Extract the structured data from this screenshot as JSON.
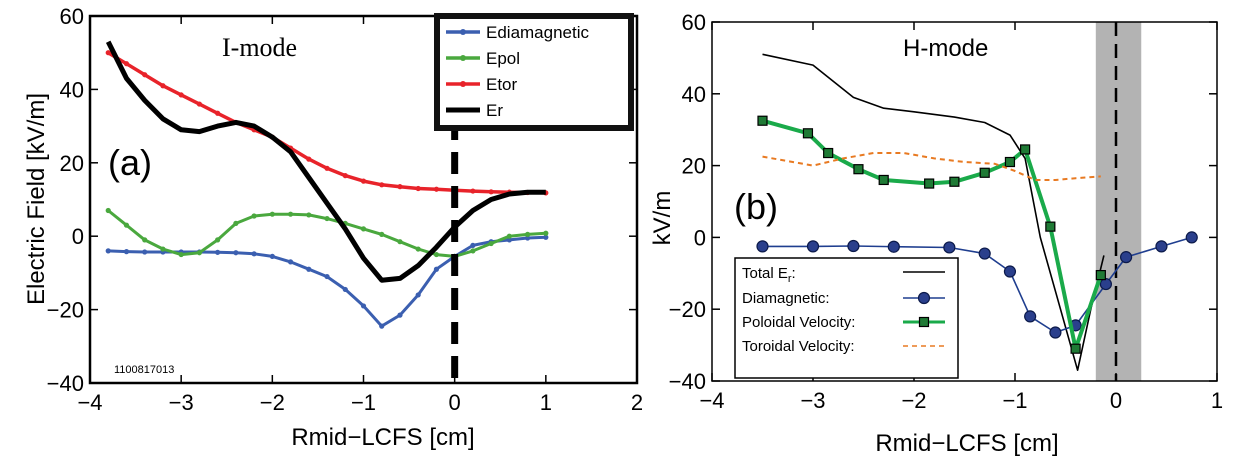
{
  "chart_data": [
    {
      "type": "line",
      "panel_label": "(a)",
      "mode_label": "I-mode",
      "xlabel": "Rmid−LCFS [cm]",
      "ylabel": "Electric Field [kV/m]",
      "xlim": [
        -4,
        2
      ],
      "ylim": [
        -40,
        60
      ],
      "xticks": [
        -4,
        -3,
        -2,
        -1,
        0,
        1,
        2
      ],
      "yticks": [
        -40,
        -20,
        0,
        20,
        40,
        60
      ],
      "shot_label": "1100817013",
      "legend_position": "top-right",
      "vline_x": 0,
      "series": [
        {
          "name": "Ediamagnetic",
          "color": "#3b5fb0",
          "marker": "dot",
          "x": [
            -3.8,
            -3.6,
            -3.4,
            -3.2,
            -3.0,
            -2.8,
            -2.6,
            -2.4,
            -2.2,
            -2.0,
            -1.8,
            -1.6,
            -1.4,
            -1.2,
            -1.0,
            -0.8,
            -0.6,
            -0.4,
            -0.2,
            0.0,
            0.2,
            0.4,
            0.6,
            0.8,
            1.0
          ],
          "y": [
            -4,
            -4.2,
            -4.3,
            -4.3,
            -4.3,
            -4.3,
            -4.4,
            -4.5,
            -4.8,
            -5.5,
            -7,
            -9,
            -11,
            -14.5,
            -19,
            -24.5,
            -21.5,
            -16,
            -9,
            -5.5,
            -2.5,
            -1.5,
            -1,
            -0.5,
            -0.3
          ]
        },
        {
          "name": "Epol",
          "color": "#4aa83e",
          "marker": "dot",
          "x": [
            -3.8,
            -3.6,
            -3.4,
            -3.2,
            -3.0,
            -2.8,
            -2.6,
            -2.4,
            -2.2,
            -2.0,
            -1.8,
            -1.6,
            -1.4,
            -1.2,
            -1.0,
            -0.8,
            -0.6,
            -0.4,
            -0.2,
            0.0,
            0.2,
            0.4,
            0.6,
            0.8,
            1.0
          ],
          "y": [
            7,
            3,
            -1,
            -3.5,
            -5,
            -4.5,
            -1,
            3.5,
            5.5,
            6,
            6,
            5.8,
            4.8,
            3.5,
            2,
            0.5,
            -1.5,
            -3.5,
            -5,
            -5.5,
            -4,
            -2,
            0,
            0.5,
            0.8
          ]
        },
        {
          "name": "Etor",
          "color": "#e8232a",
          "marker": "dot",
          "x": [
            -3.8,
            -3.6,
            -3.4,
            -3.2,
            -3.0,
            -2.8,
            -2.6,
            -2.4,
            -2.2,
            -2.0,
            -1.8,
            -1.6,
            -1.4,
            -1.2,
            -1.0,
            -0.8,
            -0.6,
            -0.4,
            -0.2,
            0.0,
            0.2,
            0.4,
            0.6,
            0.8,
            1.0
          ],
          "y": [
            50,
            47,
            44,
            41,
            38.5,
            36,
            33.5,
            31,
            29,
            27,
            24,
            21,
            18.5,
            16.5,
            15,
            14,
            13.5,
            13,
            12.8,
            12.5,
            12.3,
            12.1,
            12,
            11.9,
            11.8
          ]
        },
        {
          "name": "Er",
          "color": "#000000",
          "marker": "none",
          "x": [
            -3.8,
            -3.6,
            -3.4,
            -3.2,
            -3.0,
            -2.8,
            -2.6,
            -2.4,
            -2.2,
            -2.0,
            -1.8,
            -1.6,
            -1.4,
            -1.2,
            -1.0,
            -0.8,
            -0.6,
            -0.4,
            -0.2,
            0.0,
            0.2,
            0.4,
            0.6,
            0.8,
            1.0
          ],
          "y": [
            53,
            43,
            37,
            32,
            29,
            28.5,
            30,
            31,
            30,
            27,
            23,
            16,
            9,
            2,
            -6,
            -12,
            -11.5,
            -8,
            -3,
            2.5,
            7,
            10,
            11.5,
            12,
            12
          ]
        }
      ]
    },
    {
      "type": "line",
      "panel_label": "(b)",
      "mode_label": "H-mode",
      "xlabel": "Rmid−LCFS [cm]",
      "ylabel": "kV/m",
      "xlim": [
        -4,
        1
      ],
      "ylim": [
        -40,
        60
      ],
      "xticks": [
        -4,
        -3,
        -2,
        -1,
        0,
        1
      ],
      "yticks": [
        -40,
        -20,
        0,
        20,
        40,
        60
      ],
      "legend_position": "bottom-left",
      "shaded_band": [
        -0.2,
        0.25
      ],
      "vline_x": 0,
      "legend_title_prefix": "Total E",
      "legend_title_sub": "r",
      "legend_title_suffix": ":",
      "series": [
        {
          "name": "Total Er",
          "color": "#000000",
          "marker": "none",
          "dash": "solid",
          "x": [
            -3.5,
            -3.0,
            -2.6,
            -2.3,
            -2.0,
            -1.6,
            -1.3,
            -1.05,
            -0.9,
            -0.75,
            -0.55,
            -0.38,
            -0.25,
            -0.12
          ],
          "y": [
            51,
            48,
            39,
            36,
            35,
            33.5,
            32,
            28.5,
            22,
            0,
            -20,
            -37,
            -20,
            -5
          ]
        },
        {
          "name": "Diamagnetic:",
          "color": "#1f3e8f",
          "marker": "circle",
          "dash": "solid",
          "x": [
            -3.5,
            -3.0,
            -2.6,
            -2.2,
            -1.65,
            -1.3,
            -1.05,
            -0.85,
            -0.6,
            -0.4,
            -0.1,
            0.1,
            0.45,
            0.75
          ],
          "y": [
            -2.5,
            -2.5,
            -2.4,
            -2.6,
            -2.8,
            -4.5,
            -9.5,
            -22,
            -26.5,
            -24.5,
            -13,
            -5.5,
            -2.5,
            0
          ]
        },
        {
          "name": "Poloidal Velocity:",
          "color": "#1aaa4a",
          "marker": "square",
          "dash": "solid",
          "x": [
            -3.5,
            -3.05,
            -2.85,
            -2.55,
            -2.3,
            -1.85,
            -1.6,
            -1.3,
            -1.05,
            -0.9,
            -0.65,
            -0.4,
            -0.15
          ],
          "y": [
            32.5,
            29,
            23.5,
            19,
            16,
            15,
            15.5,
            18,
            21,
            24.5,
            3,
            -31,
            -10.5
          ]
        },
        {
          "name": "Toroidal Velocity:",
          "color": "#e87a22",
          "marker": "none",
          "dash": "dashed",
          "x": [
            -3.5,
            -3.2,
            -3.0,
            -2.7,
            -2.4,
            -2.1,
            -1.8,
            -1.5,
            -1.2,
            -1.0,
            -0.8,
            -0.6,
            -0.4,
            -0.15
          ],
          "y": [
            22.5,
            21,
            20,
            22,
            23.5,
            23.5,
            22,
            21,
            20.5,
            18.5,
            16,
            16,
            16.5,
            17
          ]
        }
      ]
    }
  ]
}
